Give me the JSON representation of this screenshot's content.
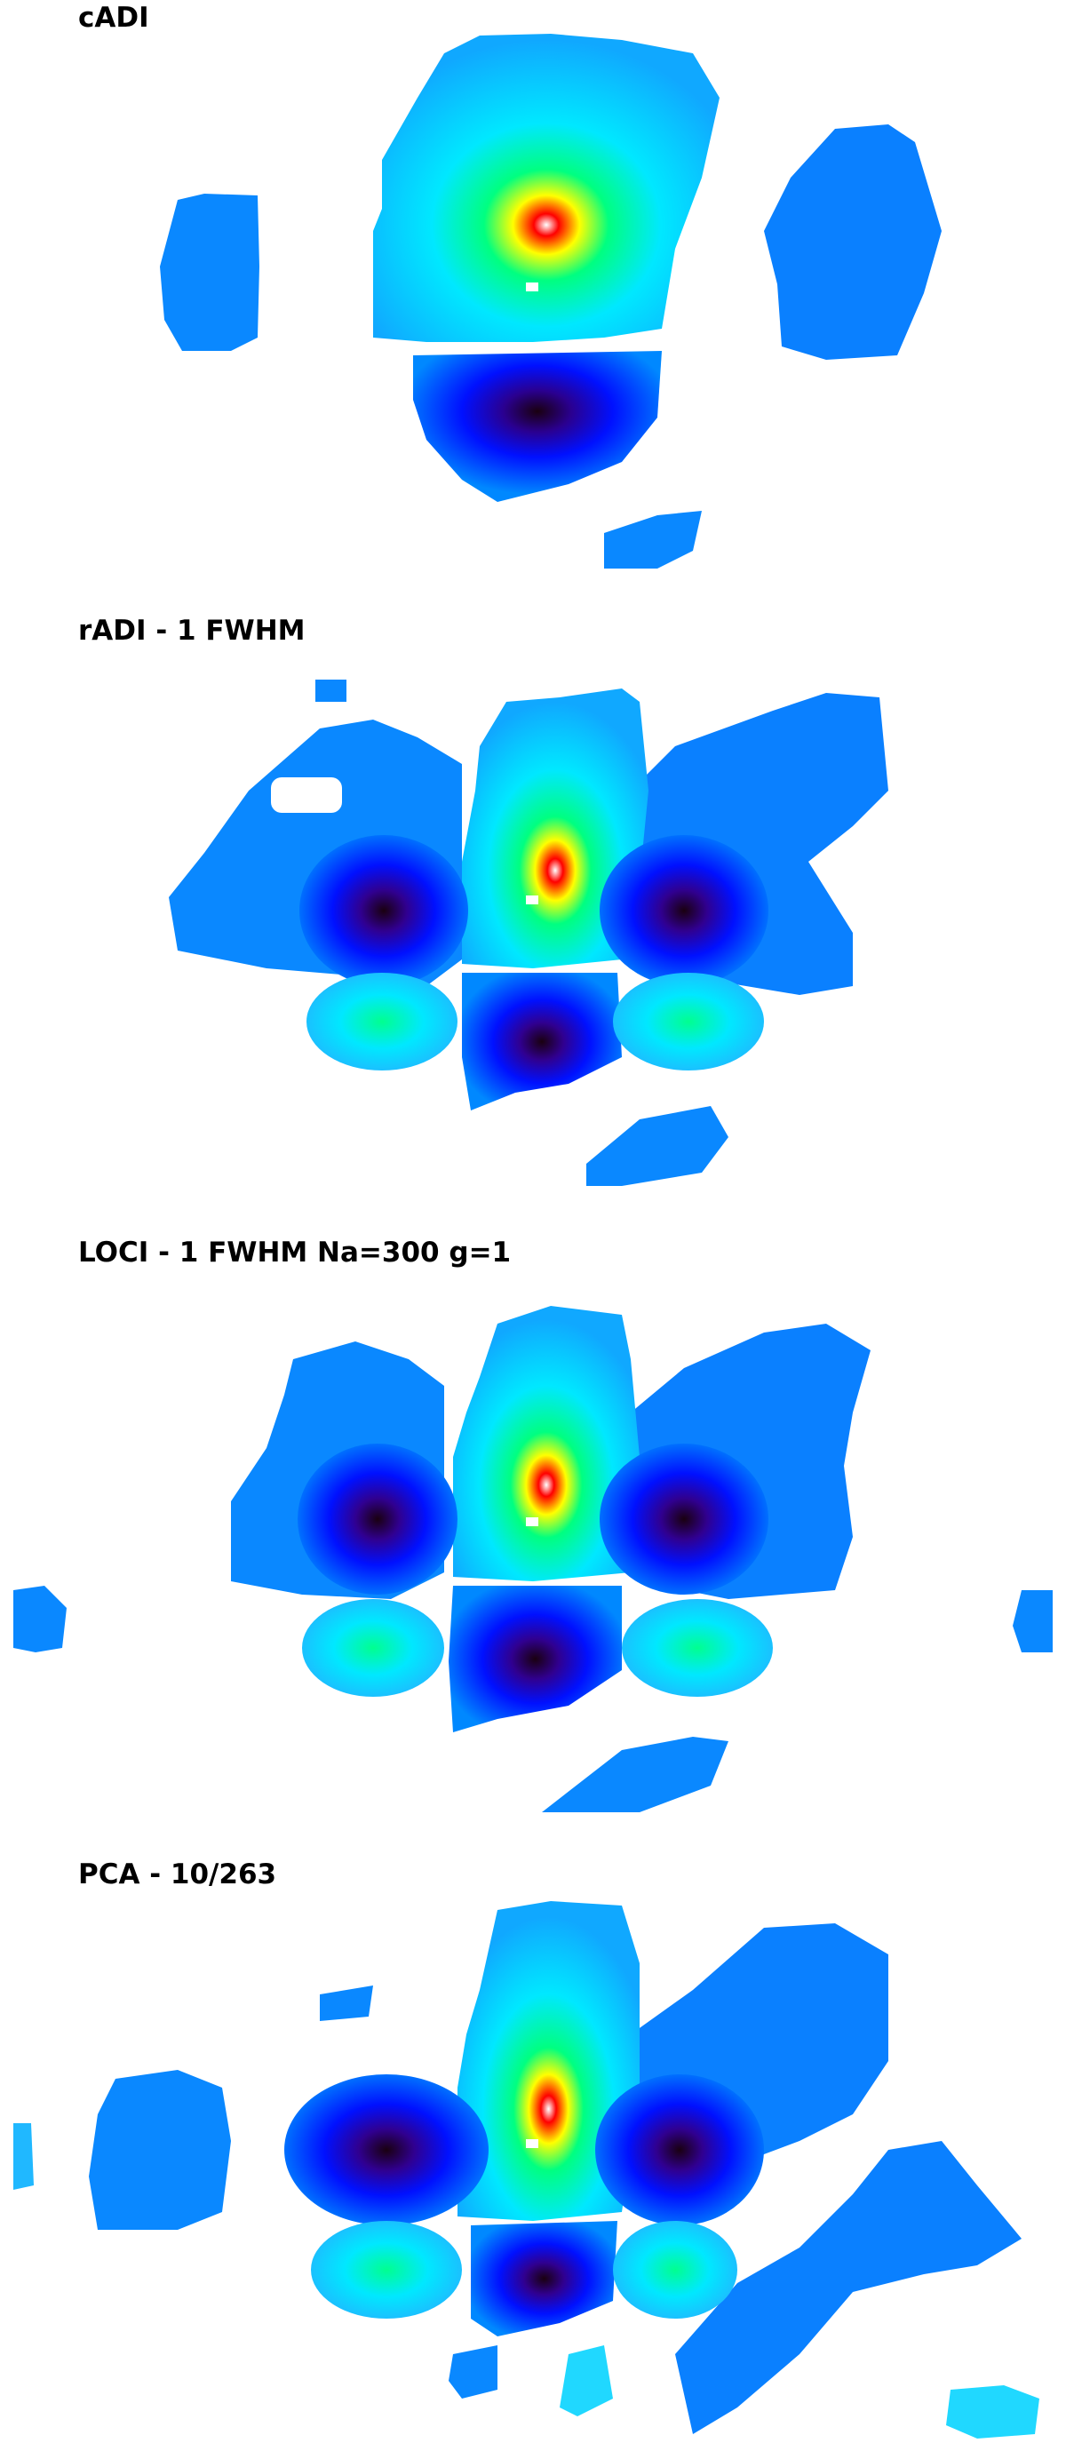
{
  "panels": [
    {
      "title": "cADI"
    },
    {
      "title": "rADI - 1 FWHM"
    },
    {
      "title": "LOCI - 1 FWHM Na=300 g=1"
    },
    {
      "title": "PCA - 10/263"
    }
  ],
  "colors": {
    "background": "#ffffff",
    "peak": "#ffffff",
    "red": "#ff0000",
    "yellow": "#ffff00",
    "green": "#00ff80",
    "cyan": "#00ffff",
    "light_blue": "#0088ff",
    "blue": "#0010ff",
    "dark": "#1a0010"
  }
}
